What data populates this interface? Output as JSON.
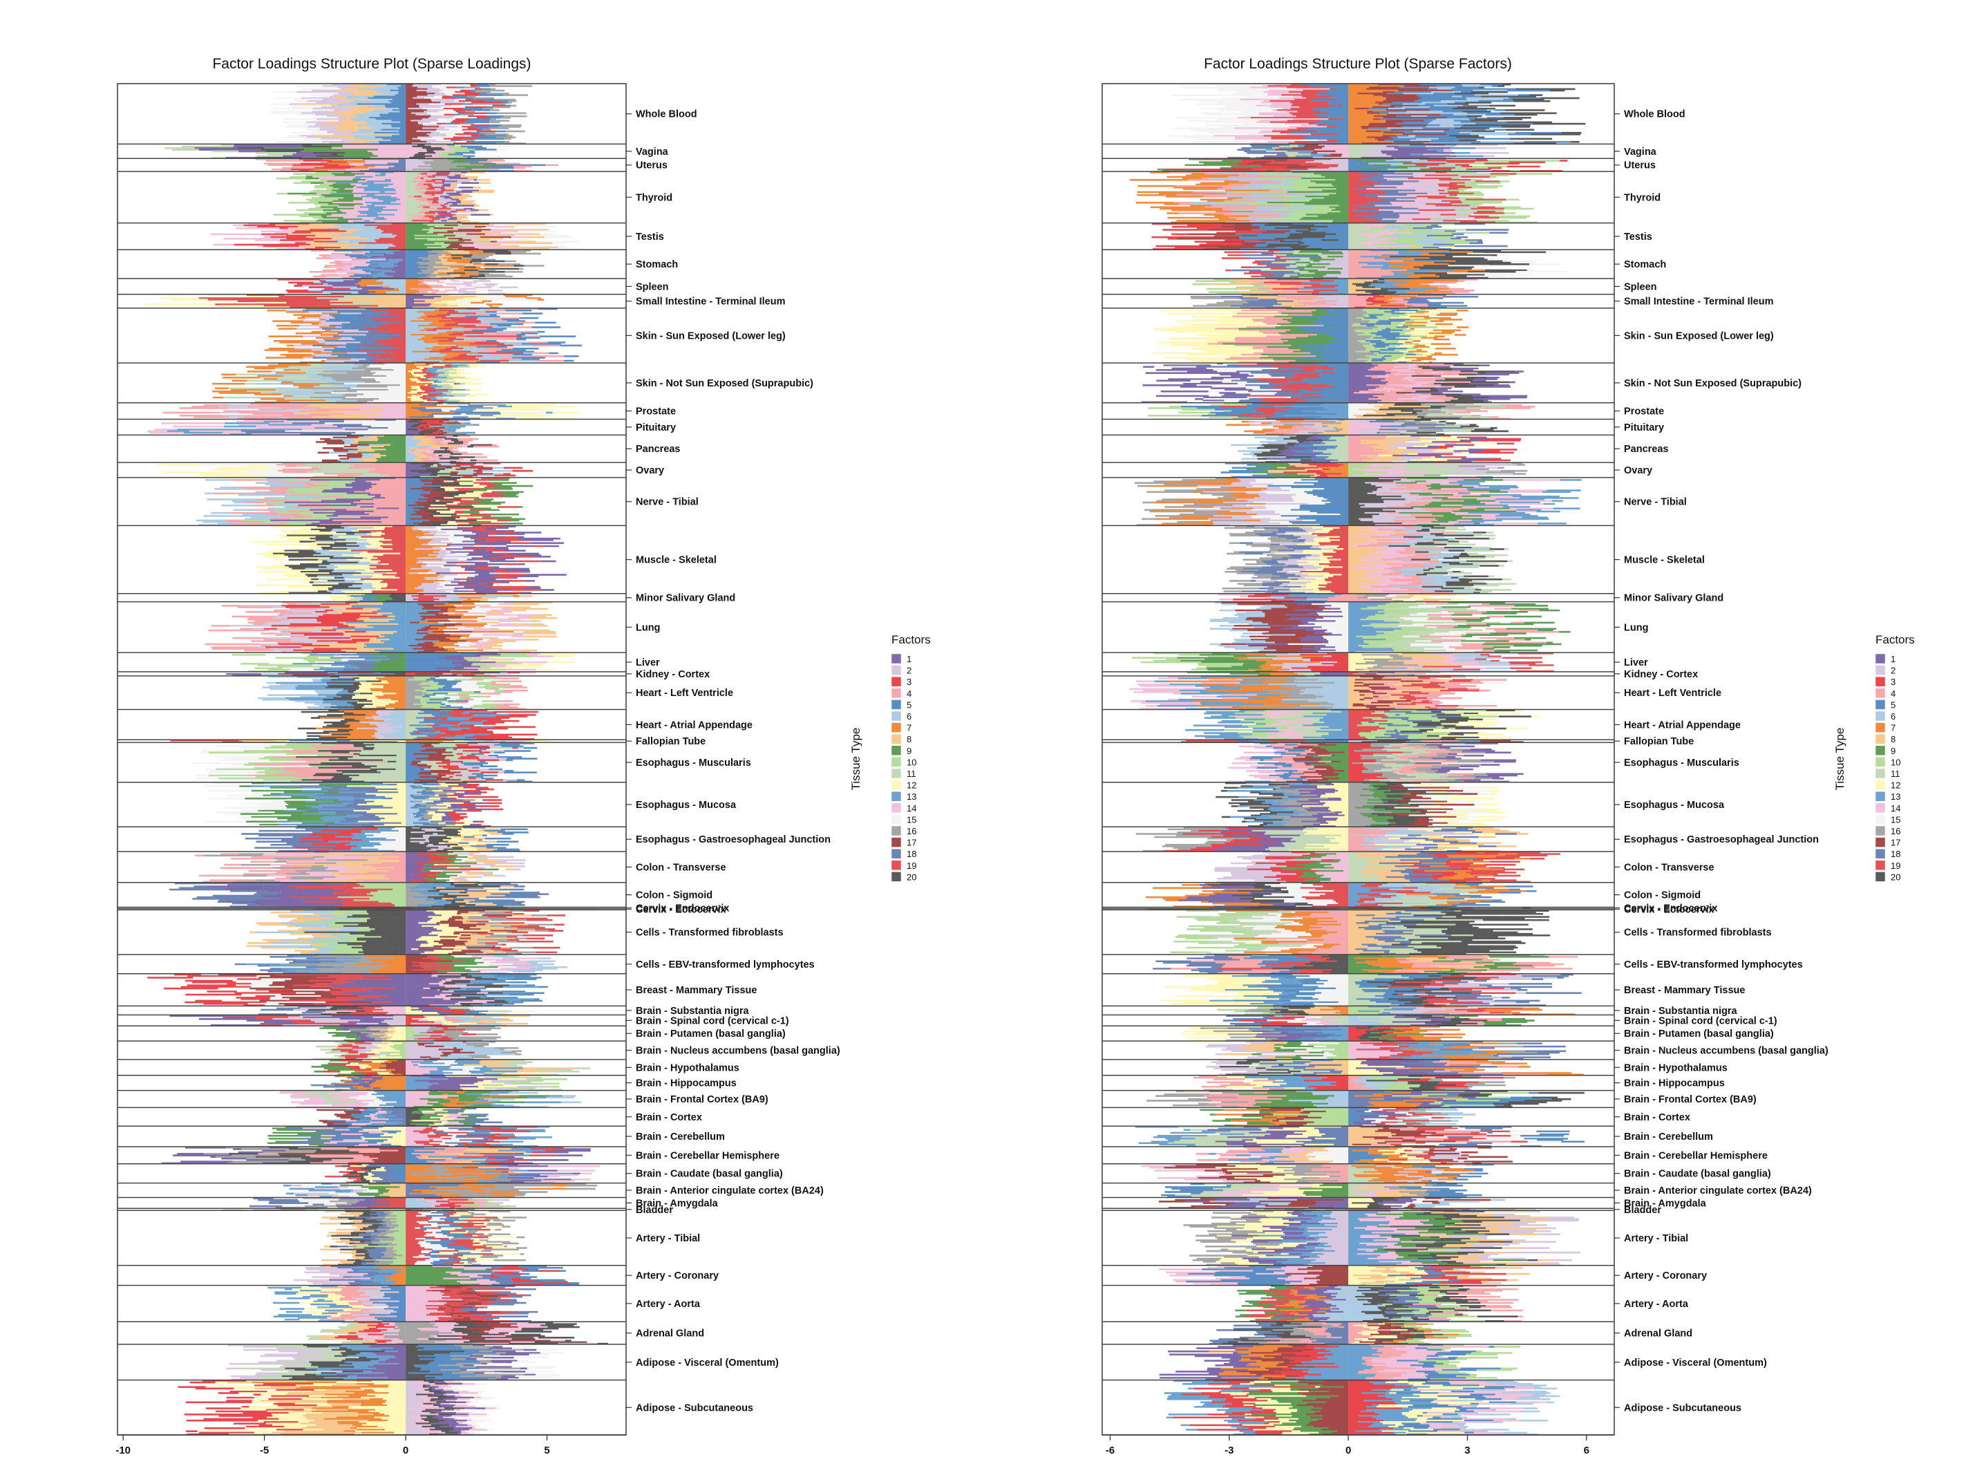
{
  "palette": {
    "1": "#7e6aa8",
    "2": "#d7c8e0",
    "3": "#e8474d",
    "4": "#f6a9ad",
    "5": "#5b8ec2",
    "6": "#aecde4",
    "7": "#f08a3d",
    "8": "#f9c88e",
    "9": "#5f9e58",
    "10": "#b5dc9a",
    "11": "#c3d9b8",
    "12": "#fff8b8",
    "13": "#6da2cf",
    "14": "#f1c1dc",
    "15": "#f4f4f4",
    "16": "#a6a6a6",
    "17": "#a44a4a",
    "18": "#6d84b5",
    "19": "#e25357",
    "20": "#5a5a5a"
  },
  "chart_data": [
    {
      "type": "bar",
      "orientation": "horizontal-stacked",
      "title": "Factor Loadings Structure Plot (Sparse Loadings)",
      "xlim": [
        -10.2,
        7.8
      ],
      "xticks": [
        -10,
        -5,
        0,
        5
      ],
      "legend": {
        "title": "Factors",
        "labels": [
          "1",
          "2",
          "3",
          "4",
          "5",
          "6",
          "7",
          "8",
          "9",
          "10",
          "11",
          "12",
          "13",
          "14",
          "15",
          "16",
          "17",
          "18",
          "19",
          "20"
        ],
        "position": "right"
      },
      "ylabel": "Tissue Type",
      "seed": 11
    },
    {
      "type": "bar",
      "orientation": "horizontal-stacked",
      "title": "Factor Loadings Structure Plot (Sparse Factors)",
      "xlim": [
        -6.2,
        6.7
      ],
      "xticks": [
        -6,
        -3,
        0,
        3,
        6
      ],
      "legend": {
        "title": "Factors",
        "labels": [
          "1",
          "2",
          "3",
          "4",
          "5",
          "6",
          "7",
          "8",
          "9",
          "10",
          "11",
          "12",
          "13",
          "14",
          "15",
          "16",
          "17",
          "18",
          "19",
          "20"
        ],
        "position": "right"
      },
      "ylabel": "Tissue Type",
      "seed": 29
    }
  ],
  "tissues": [
    {
      "name": "Whole Blood",
      "weight": 88
    },
    {
      "name": "Vagina",
      "weight": 21
    },
    {
      "name": "Uterus",
      "weight": 19
    },
    {
      "name": "Thyroid",
      "weight": 75
    },
    {
      "name": "Testis",
      "weight": 39
    },
    {
      "name": "Stomach",
      "weight": 42
    },
    {
      "name": "Spleen",
      "weight": 23
    },
    {
      "name": "Small Intestine - Terminal Ileum",
      "weight": 20
    },
    {
      "name": "Skin - Sun Exposed (Lower leg)",
      "weight": 80
    },
    {
      "name": "Skin - Not Sun Exposed (Suprapubic)",
      "weight": 58
    },
    {
      "name": "Prostate",
      "weight": 24
    },
    {
      "name": "Pituitary",
      "weight": 23
    },
    {
      "name": "Pancreas",
      "weight": 40
    },
    {
      "name": "Ovary",
      "weight": 22
    },
    {
      "name": "Nerve - Tibial",
      "weight": 70
    },
    {
      "name": "Muscle - Skeletal",
      "weight": 99
    },
    {
      "name": "Minor Salivary Gland",
      "weight": 12
    },
    {
      "name": "Lung",
      "weight": 74
    },
    {
      "name": "Liver",
      "weight": 28
    },
    {
      "name": "Kidney - Cortex",
      "weight": 6
    },
    {
      "name": "Heart - Left Ventricle",
      "weight": 49
    },
    {
      "name": "Heart - Atrial Appendage",
      "weight": 44
    },
    {
      "name": "Fallopian Tube",
      "weight": 4
    },
    {
      "name": "Esophagus - Muscularis",
      "weight": 58
    },
    {
      "name": "Esophagus - Mucosa",
      "weight": 65
    },
    {
      "name": "Esophagus - Gastroesophageal Junction",
      "weight": 36
    },
    {
      "name": "Colon - Transverse",
      "weight": 45
    },
    {
      "name": "Colon - Sigmoid",
      "weight": 36
    },
    {
      "name": "Cervix - Endocervix",
      "weight": 2
    },
    {
      "name": "Cervix - Ectocervix",
      "weight": 2
    },
    {
      "name": "Cells - Transformed fibroblasts",
      "weight": 65
    },
    {
      "name": "Cells - EBV-transformed lymphocytes",
      "weight": 28
    },
    {
      "name": "Breast - Mammary Tissue",
      "weight": 47
    },
    {
      "name": "Brain - Substantia nigra",
      "weight": 13
    },
    {
      "name": "Brain - Spinal cord (cervical c-1)",
      "weight": 16
    },
    {
      "name": "Brain - Putamen (basal ganglia)",
      "weight": 22
    },
    {
      "name": "Brain - Nucleus accumbens (basal ganglia)",
      "weight": 27
    },
    {
      "name": "Brain - Hypothalamus",
      "weight": 23
    },
    {
      "name": "Brain - Hippocampus",
      "weight": 22
    },
    {
      "name": "Brain - Frontal Cortex (BA9)",
      "weight": 25
    },
    {
      "name": "Brain - Cortex",
      "weight": 27
    },
    {
      "name": "Brain - Cerebellum",
      "weight": 30
    },
    {
      "name": "Brain - Cerebellar Hemisphere",
      "weight": 25
    },
    {
      "name": "Brain - Caudate (basal ganglia)",
      "weight": 28
    },
    {
      "name": "Brain - Anterior cingulate cortex (BA24)",
      "weight": 21
    },
    {
      "name": "Brain - Amygdala",
      "weight": 16
    },
    {
      "name": "Bladder",
      "weight": 3
    },
    {
      "name": "Artery - Tibial",
      "weight": 80
    },
    {
      "name": "Artery - Coronary",
      "weight": 29
    },
    {
      "name": "Artery - Aorta",
      "weight": 53
    },
    {
      "name": "Adrenal Gland",
      "weight": 33
    },
    {
      "name": "Adipose - Visceral (Omentum)",
      "weight": 52
    },
    {
      "name": "Adipose - Subcutaneous",
      "weight": 80
    }
  ]
}
